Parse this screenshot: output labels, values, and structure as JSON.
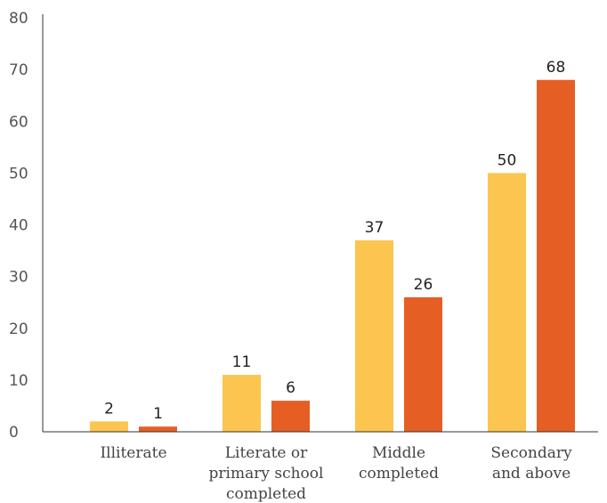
{
  "chart_data": {
    "type": "bar",
    "categories": [
      [
        "Illiterate"
      ],
      [
        "Literate or",
        "primary school",
        "completed"
      ],
      [
        "Middle",
        "completed"
      ],
      [
        "Secondary",
        "and above"
      ]
    ],
    "series": [
      {
        "values": [
          2,
          11,
          37,
          50
        ],
        "color": "#FBC54F"
      },
      {
        "values": [
          1,
          6,
          26,
          68
        ],
        "color": "#E55F25"
      }
    ],
    "ylim": [
      0,
      80
    ],
    "yticks": [
      0,
      10,
      20,
      30,
      40,
      50,
      60,
      70,
      80
    ],
    "grid": false,
    "legend": "none",
    "axis_color": "#333333"
  }
}
